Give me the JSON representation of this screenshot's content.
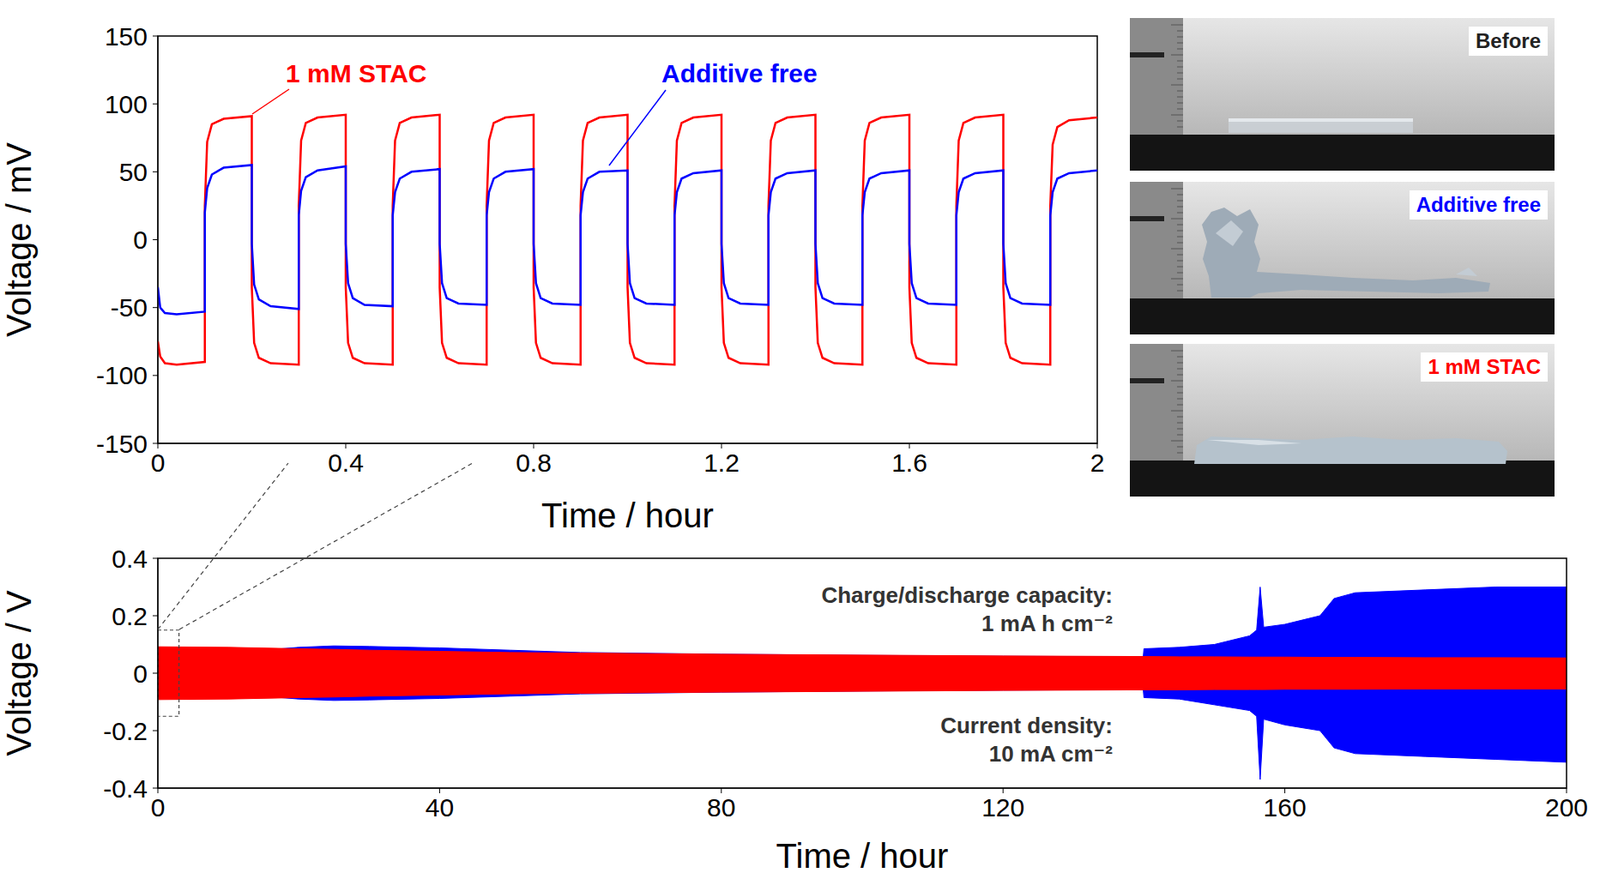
{
  "chart_data": [
    {
      "type": "line",
      "xlabel": "Time / hour",
      "ylabel": "Voltage / mV",
      "xlim": [
        0,
        2
      ],
      "xticks": [
        0,
        0.4,
        0.8,
        1.2,
        1.6,
        2
      ],
      "ylim": [
        -150,
        150
      ],
      "yticks": [
        -150,
        -100,
        -50,
        0,
        50,
        100,
        150
      ],
      "x": [
        0,
        0.005,
        0.015,
        0.04,
        0.1,
        0.1,
        0.105,
        0.115,
        0.14,
        0.2,
        0.2,
        0.205,
        0.215,
        0.24,
        0.3,
        0.3,
        0.305,
        0.315,
        0.34,
        0.4,
        0.4,
        0.405,
        0.415,
        0.44,
        0.5,
        0.5,
        0.505,
        0.515,
        0.54,
        0.6,
        0.6,
        0.605,
        0.615,
        0.64,
        0.7,
        0.7,
        0.705,
        0.715,
        0.74,
        0.8,
        0.8,
        0.805,
        0.815,
        0.84,
        0.9,
        0.9,
        0.905,
        0.915,
        0.94,
        1,
        1,
        1.005,
        1.015,
        1.04,
        1.1,
        1.1,
        1.105,
        1.115,
        1.14,
        1.2,
        1.2,
        1.205,
        1.215,
        1.24,
        1.3,
        1.3,
        1.305,
        1.315,
        1.34,
        1.4,
        1.4,
        1.405,
        1.415,
        1.44,
        1.5,
        1.5,
        1.505,
        1.515,
        1.54,
        1.6,
        1.6,
        1.605,
        1.615,
        1.64,
        1.7,
        1.7,
        1.705,
        1.715,
        1.74,
        1.8,
        1.8,
        1.805,
        1.815,
        1.84,
        1.9,
        1.9,
        1.905,
        1.915,
        1.94,
        2
      ],
      "series": [
        {
          "name": "1 mM STAC",
          "color": "#ff0000",
          "values": [
            -75,
            -86,
            -91,
            -92,
            -90,
            25,
            72,
            85,
            89,
            91,
            -35,
            -76,
            -87,
            -91,
            -92,
            25,
            73,
            86,
            90,
            92,
            -35,
            -76,
            -87,
            -91,
            -92,
            25,
            73,
            86,
            90,
            92,
            -35,
            -76,
            -87,
            -91,
            -92,
            25,
            73,
            86,
            90,
            92,
            -35,
            -76,
            -87,
            -91,
            -92,
            25,
            73,
            86,
            90,
            92,
            -35,
            -76,
            -87,
            -91,
            -92,
            25,
            73,
            86,
            90,
            92,
            -35,
            -76,
            -87,
            -91,
            -92,
            25,
            73,
            86,
            90,
            92,
            -35,
            -76,
            -87,
            -91,
            -92,
            25,
            73,
            86,
            90,
            92,
            -35,
            -76,
            -87,
            -91,
            -92,
            25,
            73,
            86,
            90,
            92,
            -35,
            -76,
            -87,
            -91,
            -92,
            25,
            70,
            83,
            88,
            90
          ]
        },
        {
          "name": "Additive free",
          "color": "#0000ff",
          "values": [
            -35,
            -50,
            -54,
            -55,
            -53,
            20,
            38,
            48,
            53,
            55,
            -3,
            -33,
            -44,
            -49,
            -51,
            18,
            36,
            46,
            51,
            54,
            -3,
            -32,
            -43,
            -48,
            -49,
            18,
            35,
            45,
            50,
            52,
            -3,
            -32,
            -43,
            -47,
            -48,
            18,
            35,
            45,
            50,
            52,
            -3,
            -32,
            -43,
            -47,
            -48,
            18,
            35,
            45,
            50,
            51,
            -3,
            -32,
            -43,
            -47,
            -48,
            18,
            35,
            45,
            49,
            51,
            -3,
            -32,
            -43,
            -47,
            -48,
            18,
            35,
            45,
            49,
            51,
            -3,
            -32,
            -43,
            -47,
            -48,
            18,
            35,
            45,
            49,
            51,
            -3,
            -32,
            -43,
            -47,
            -48,
            18,
            35,
            45,
            49,
            51,
            -3,
            -32,
            -43,
            -47,
            -48,
            18,
            35,
            45,
            49,
            51
          ]
        }
      ]
    },
    {
      "type": "area",
      "xlabel": "Time / hour",
      "ylabel": "Voltage / V",
      "xlim": [
        0,
        200
      ],
      "xticks": [
        0,
        40,
        80,
        120,
        160,
        200
      ],
      "ylim": [
        -0.4,
        0.4
      ],
      "yticks": [
        -0.4,
        -0.2,
        0,
        0.2,
        0.4
      ],
      "annotations": [
        "Charge/discharge capacity:",
        "1 mA h cm⁻²",
        "Current density:",
        "10 mA cm⁻²"
      ],
      "zoom_box": {
        "xlim": [
          0,
          3
        ],
        "ylim": [
          -0.15,
          0.15
        ]
      },
      "x": [
        0,
        10,
        20,
        25,
        30,
        40,
        50,
        60,
        80,
        100,
        120,
        139.9,
        140,
        145,
        150,
        155,
        156,
        156.5,
        157,
        160,
        165,
        167,
        170,
        180,
        190,
        200
      ],
      "series": [
        {
          "color": "#0000ff",
          "values": [
            [
              -0.05,
              0.05
            ],
            [
              -0.07,
              0.07
            ],
            [
              -0.09,
              0.09
            ],
            [
              -0.095,
              0.095
            ],
            [
              -0.093,
              0.093
            ],
            [
              -0.088,
              0.088
            ],
            [
              -0.08,
              0.08
            ],
            [
              -0.072,
              0.072
            ],
            [
              -0.066,
              0.066
            ],
            [
              -0.062,
              0.062
            ],
            [
              -0.059,
              0.059
            ],
            [
              -0.057,
              0.057
            ],
            [
              -0.085,
              0.085
            ],
            [
              -0.09,
              0.09
            ],
            [
              -0.11,
              0.1
            ],
            [
              -0.13,
              0.13
            ],
            [
              -0.15,
              0.15
            ],
            [
              -0.37,
              0.3
            ],
            [
              -0.16,
              0.16
            ],
            [
              -0.18,
              0.17
            ],
            [
              -0.2,
              0.2
            ],
            [
              -0.26,
              0.26
            ],
            [
              -0.28,
              0.28
            ],
            [
              -0.29,
              0.29
            ],
            [
              -0.3,
              0.3
            ],
            [
              -0.31,
              0.3
            ]
          ]
        },
        {
          "color": "#ff0000",
          "values": [
            [
              -0.092,
              0.092
            ],
            [
              -0.09,
              0.09
            ],
            [
              -0.085,
              0.085
            ],
            [
              -0.083,
              0.083
            ],
            [
              -0.08,
              0.08
            ],
            [
              -0.076,
              0.076
            ],
            [
              -0.072,
              0.072
            ],
            [
              -0.07,
              0.07
            ],
            [
              -0.066,
              0.066
            ],
            [
              -0.063,
              0.063
            ],
            [
              -0.06,
              0.06
            ],
            [
              -0.058,
              0.058
            ],
            [
              -0.058,
              0.058
            ],
            [
              -0.058,
              0.057
            ],
            [
              -0.057,
              0.057
            ],
            [
              -0.057,
              0.056
            ],
            [
              -0.057,
              0.056
            ],
            [
              -0.057,
              0.056
            ],
            [
              -0.057,
              0.056
            ],
            [
              -0.056,
              0.056
            ],
            [
              -0.056,
              0.055
            ],
            [
              -0.056,
              0.055
            ],
            [
              -0.056,
              0.055
            ],
            [
              -0.055,
              0.054
            ],
            [
              -0.055,
              0.054
            ],
            [
              -0.055,
              0.053
            ]
          ]
        }
      ]
    }
  ],
  "photos": [
    {
      "label": "Before",
      "color": "#222222"
    },
    {
      "label": "Additive free",
      "color": "#0000ff"
    },
    {
      "label": "1 mM STAC",
      "color": "#ff0000"
    }
  ]
}
